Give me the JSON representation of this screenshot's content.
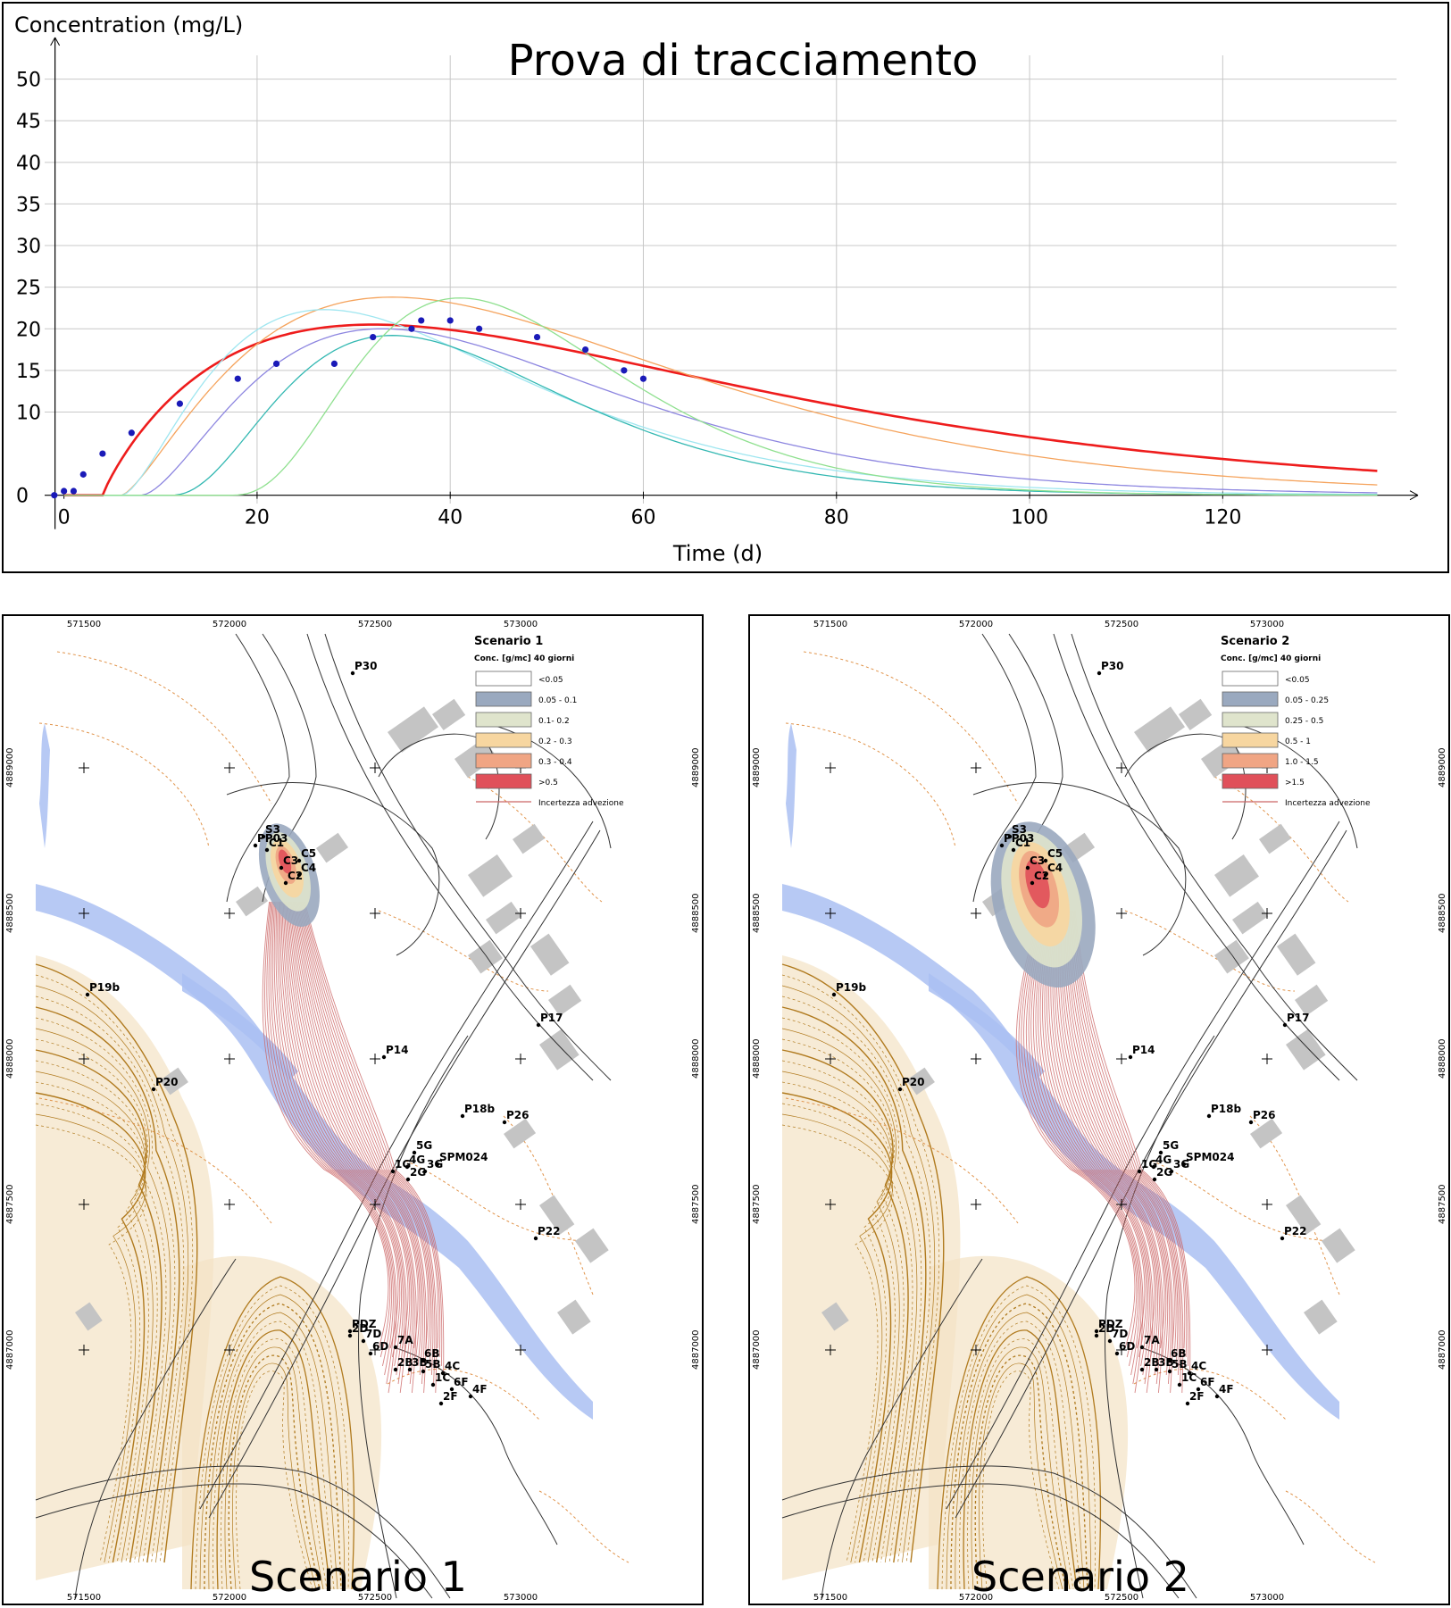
{
  "chart_data": {
    "type": "line",
    "title": "Prova di tracciamento",
    "xlabel": "Time (d)",
    "ylabel": "Concentration (mg/L)",
    "xlim": [
      -2,
      138
    ],
    "ylim": [
      -1,
      55
    ],
    "x_ticks": [
      0,
      20,
      40,
      60,
      80,
      100,
      120
    ],
    "y_ticks": [
      0,
      10,
      15,
      20,
      25,
      30,
      35,
      40,
      45,
      50
    ],
    "grid": true,
    "observed_points": {
      "color": "#1a1ab8",
      "x": [
        -1,
        0,
        1,
        2,
        4,
        7,
        12,
        18,
        22,
        28,
        32,
        36,
        37,
        40,
        43,
        49,
        54,
        58,
        60
      ],
      "y": [
        0,
        0.5,
        0.5,
        2.5,
        5,
        7.5,
        11,
        14,
        15.8,
        15.8,
        19,
        20,
        21,
        21,
        20,
        19,
        17.5,
        15,
        14
      ]
    },
    "series": [
      {
        "color": "#ee1c1c",
        "width": 2.6,
        "t0": 4,
        "peak_t": 32,
        "peak": 20.5,
        "k": 0.9
      },
      {
        "color": "#f5a35c",
        "width": 1.3,
        "t0": 6,
        "peak_t": 34,
        "peak": 23.8,
        "k": 1.4
      },
      {
        "color": "#9fe6f0",
        "width": 1.3,
        "t0": 6,
        "peak_t": 27,
        "peak": 22.3,
        "k": 1.6
      },
      {
        "color": "#8d86e0",
        "width": 1.3,
        "t0": 8,
        "peak_t": 33,
        "peak": 20.0,
        "k": 1.7
      },
      {
        "color": "#33b8b2",
        "width": 1.3,
        "t0": 11,
        "peak_t": 34,
        "peak": 19.2,
        "k": 2.4
      },
      {
        "color": "#8fe08f",
        "width": 1.3,
        "t0": 17,
        "peak_t": 41,
        "peak": 23.7,
        "k": 3.0
      }
    ]
  },
  "maps": [
    {
      "caption": "Scenario 1",
      "legend": {
        "title": "Scenario 1",
        "subtitle": "Conc. [g/mc] 40 giorni",
        "items": [
          {
            "label": "<0.05",
            "color": "#ffffff"
          },
          {
            "label": "0.05 - 0.1",
            "color": "#9aa9bf"
          },
          {
            "label": "0.1- 0.2",
            "color": "#dfe4cc"
          },
          {
            "label": "0.2 - 0.3",
            "color": "#f7d6a0"
          },
          {
            "label": "0.3 - 0.4",
            "color": "#f0a584"
          },
          {
            "label": ">0.5",
            "color": "#e0505a"
          }
        ],
        "line_label": "Incertezza advezione",
        "line_color": "#cc6666"
      }
    },
    {
      "caption": "Scenario 2",
      "legend": {
        "title": "Scenario 2",
        "subtitle": "Conc. [g/mc] 40 giorni",
        "items": [
          {
            "label": "<0.05",
            "color": "#ffffff"
          },
          {
            "label": "0.05 - 0.25",
            "color": "#9aa9bf"
          },
          {
            "label": "0.25 - 0.5",
            "color": "#dfe4cc"
          },
          {
            "label": "0.5 - 1",
            "color": "#f7d6a0"
          },
          {
            "label": "1.0 - 1.5",
            "color": "#f0a584"
          },
          {
            "label": ">1.5",
            "color": "#e0505a"
          }
        ],
        "line_label": "Incertezza advezione",
        "line_color": "#cc6666"
      }
    }
  ],
  "map_common": {
    "x_ticks": [
      "571500",
      "572000",
      "572500",
      "573000"
    ],
    "y_ticks": [
      "4889000",
      "4888500",
      "4888000",
      "4887500",
      "4887000"
    ],
    "well_labels": [
      "P30",
      "PP03",
      "S3",
      "C1",
      "C3",
      "C5",
      "C4",
      "C2",
      "P19b",
      "P17",
      "P14",
      "P20",
      "P18b",
      "P26",
      "5G",
      "4G",
      "SPM024",
      "1G",
      "2G",
      "3G",
      "P22",
      "PDZ",
      "2D",
      "7D",
      "6D",
      "7A",
      "6B",
      "2B",
      "3B",
      "5B",
      "4C",
      "1C",
      "6F",
      "4F",
      "2F"
    ],
    "colors": {
      "river": "#aabff2",
      "hill_contour": "#b07a1e",
      "hill_fill": "#f3e2c4",
      "contour_dash": "#e0934a",
      "building": "#c4c4c4",
      "road": "#333333"
    }
  }
}
